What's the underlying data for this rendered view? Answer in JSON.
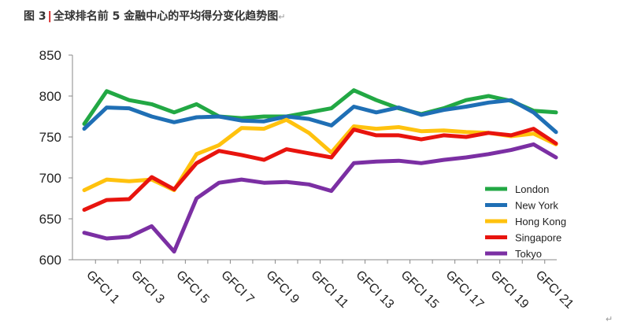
{
  "caption": {
    "figure_no": "图 3",
    "title": "全球排名前 5 金融中心的平均得分变化趋势图"
  },
  "return_mark": "↵",
  "chart_data": {
    "type": "line",
    "title": "全球排名前 5 金融中心的平均得分变化趋势图",
    "ylim": [
      600,
      850
    ],
    "yticks": [
      600,
      650,
      700,
      750,
      800,
      850
    ],
    "grid": false,
    "legend_position": "right",
    "categories": [
      "GFCI 1",
      "GFCI 2",
      "GFCI 3",
      "GFCI 4",
      "GFCI 5",
      "GFCI 6",
      "GFCI 7",
      "GFCI 8",
      "GFCI 9",
      "GFCI 10",
      "GFCI 11",
      "GFCI 12",
      "GFCI 13",
      "GFCI 14",
      "GFCI 15",
      "GFCI 16",
      "GFCI 17",
      "GFCI 18",
      "GFCI 19",
      "GFCI 20",
      "GFCI 21",
      "GFCI 22"
    ],
    "xtick_labels": [
      "GFCI 1",
      "GFCI 3",
      "GFCI 5",
      "GFCI 7",
      "GFCI 9",
      "GFCI 11",
      "GFCI 13",
      "GFCI 15",
      "GFCI 17",
      "GFCI 19",
      "GFCI 21"
    ],
    "series": [
      {
        "name": "London",
        "color": "#22a844",
        "values": [
          766,
          806,
          795,
          790,
          780,
          790,
          775,
          773,
          775,
          775,
          780,
          785,
          807,
          795,
          785,
          778,
          785,
          795,
          800,
          794,
          782,
          780
        ]
      },
      {
        "name": "New York",
        "color": "#1f6fb5",
        "values": [
          760,
          786,
          785,
          775,
          768,
          774,
          775,
          770,
          769,
          775,
          772,
          764,
          787,
          780,
          786,
          777,
          783,
          787,
          792,
          795,
          780,
          756
        ]
      },
      {
        "name": "Hong Kong",
        "color": "#ffc20e",
        "values": [
          685,
          698,
          696,
          698,
          685,
          729,
          740,
          761,
          760,
          771,
          755,
          731,
          763,
          760,
          762,
          757,
          758,
          756,
          755,
          751,
          754,
          741
        ]
      },
      {
        "name": "Singapore",
        "color": "#e8140e",
        "values": [
          661,
          673,
          674,
          701,
          686,
          718,
          733,
          728,
          722,
          735,
          730,
          725,
          759,
          752,
          752,
          747,
          752,
          750,
          755,
          752,
          760,
          742
        ]
      },
      {
        "name": "Tokyo",
        "color": "#7b2fa3",
        "values": [
          633,
          626,
          628,
          641,
          610,
          675,
          694,
          698,
          694,
          695,
          692,
          684,
          718,
          720,
          721,
          718,
          722,
          725,
          729,
          734,
          741,
          725
        ]
      }
    ]
  }
}
